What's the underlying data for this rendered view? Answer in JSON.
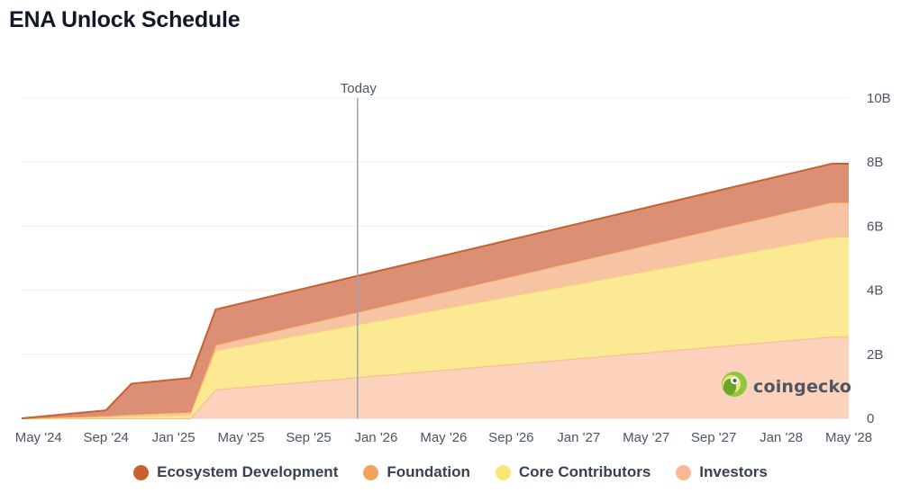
{
  "title": "ENA Unlock Schedule",
  "watermark": "coingecko",
  "colors": {
    "ecosystem_line": "#c9602f",
    "ecosystem_fill": "#d9896d",
    "foundation_line": "#f3a25a",
    "foundation_fill": "#f6c19d",
    "core_line": "#fbe675",
    "core_fill": "#fbe88e",
    "investors_line": "#f9b895",
    "investors_fill": "#fcd0b8",
    "grid": "#eceff3",
    "today_line": "#9ca3af"
  },
  "legend": [
    {
      "label": "Ecosystem Development",
      "color": "#c9602f"
    },
    {
      "label": "Foundation",
      "color": "#f3a25a"
    },
    {
      "label": "Core Contributors",
      "color": "#fbe675"
    },
    {
      "label": "Investors",
      "color": "#f9b895"
    }
  ],
  "chart_data": {
    "type": "area",
    "stacked": true,
    "title": "ENA Unlock Schedule",
    "x_unit": "months since Apr 2024",
    "xlim": [
      0,
      49
    ],
    "ylim": [
      0,
      10
    ],
    "y_unit": "B",
    "y_ticks": [
      {
        "value": 0,
        "label": "0"
      },
      {
        "value": 2,
        "label": "2B"
      },
      {
        "value": 4,
        "label": "4B"
      },
      {
        "value": 6,
        "label": "6B"
      },
      {
        "value": 8,
        "label": "8B"
      },
      {
        "value": 10,
        "label": "10B"
      }
    ],
    "x_ticks": [
      {
        "value": 1,
        "label": "May '24"
      },
      {
        "value": 5,
        "label": "Sep '24"
      },
      {
        "value": 9,
        "label": "Jan '25"
      },
      {
        "value": 13,
        "label": "May '25"
      },
      {
        "value": 17,
        "label": "Sep '25"
      },
      {
        "value": 21,
        "label": "Jan '26"
      },
      {
        "value": 25,
        "label": "May '26"
      },
      {
        "value": 29,
        "label": "Sep '26"
      },
      {
        "value": 33,
        "label": "Jan '27"
      },
      {
        "value": 37,
        "label": "May '27"
      },
      {
        "value": 41,
        "label": "Sep '27"
      },
      {
        "value": 45,
        "label": "Jan '28"
      },
      {
        "value": 49,
        "label": "May '28"
      }
    ],
    "today": {
      "x": 19.9,
      "label": "Today"
    },
    "x": [
      0,
      5,
      6.5,
      10,
      11.5,
      48,
      49
    ],
    "series": [
      {
        "name": "Investors",
        "key": "investors",
        "values": [
          0,
          0,
          0,
          0,
          0.9,
          2.55,
          2.55
        ]
      },
      {
        "name": "Core Contributors",
        "key": "core",
        "values": [
          0,
          0.03,
          0.05,
          0.1,
          1.2,
          3.1,
          3.1
        ]
      },
      {
        "name": "Foundation",
        "key": "foundation",
        "values": [
          0,
          0.05,
          0.08,
          0.1,
          0.2,
          1.1,
          1.1
        ]
      },
      {
        "name": "Ecosystem Development",
        "key": "ecosystem",
        "values": [
          0,
          0.17,
          0.95,
          1.06,
          1.1,
          1.2,
          1.2
        ]
      }
    ]
  }
}
